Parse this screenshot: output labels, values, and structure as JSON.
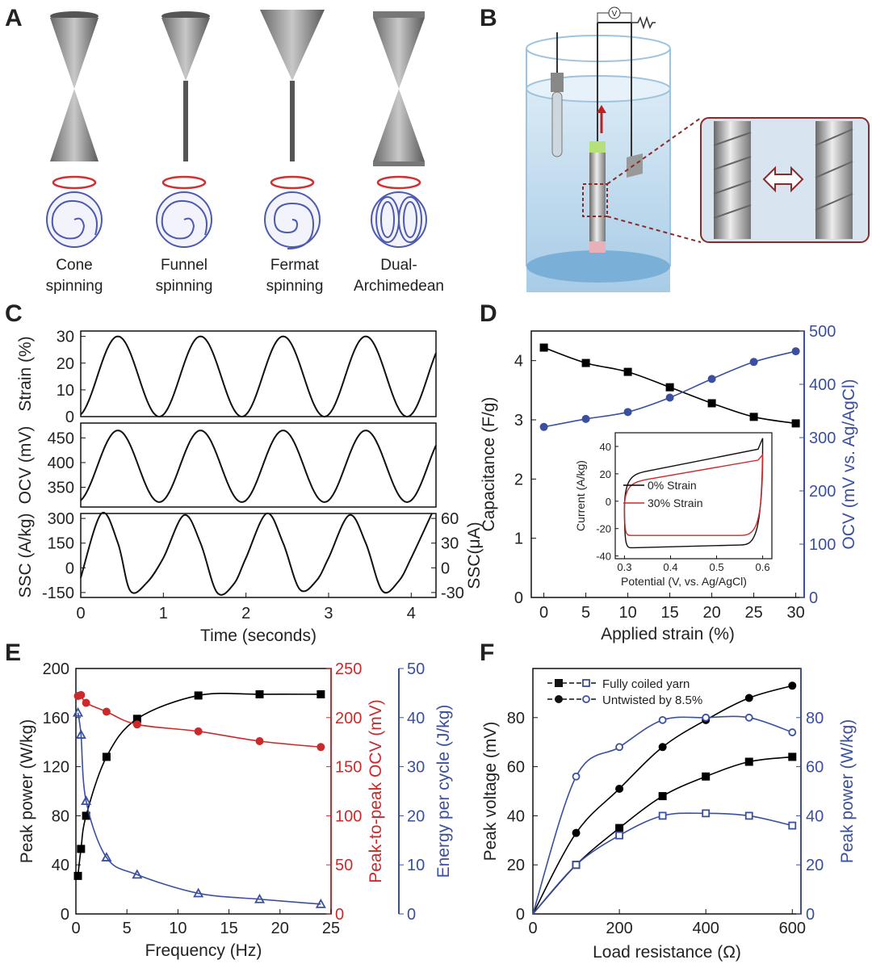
{
  "panel_letters": [
    "A",
    "B",
    "C",
    "D",
    "E",
    "F"
  ],
  "panelA": {
    "labels": [
      [
        "Cone",
        "spinning"
      ],
      [
        "Funnel",
        "spinning"
      ],
      [
        "Fermat",
        "spinning"
      ],
      [
        "Dual-",
        "Archimedean"
      ]
    ]
  },
  "panelB": {
    "voltmeter": "V"
  },
  "chart_data": [
    {
      "id": "C",
      "type": "line",
      "xlabel": "Time (seconds)",
      "xlim": [
        0,
        4.3
      ],
      "xticks": [
        0,
        1,
        2,
        3,
        4
      ],
      "peak_times": [
        0.45,
        1.5,
        2.45,
        3.45,
        4.45
      ],
      "subplots": [
        {
          "ylabel": "Strain (%)",
          "ylim": [
            0,
            32
          ],
          "yticks": [
            0,
            10,
            20,
            30
          ],
          "min": 0,
          "max": 30
        },
        {
          "ylabel": "OCV (mV)",
          "ylim": [
            310,
            480
          ],
          "yticks": [
            350,
            400,
            450
          ],
          "min": 320,
          "max": 465
        },
        {
          "ylabel": "SSC (A/kg)",
          "ylim": [
            -180,
            330
          ],
          "yticks": [
            -150,
            0,
            150,
            300
          ],
          "y2label": "SSC(μA)",
          "y2ticks": [
            -30,
            0,
            30,
            60
          ],
          "series": {
            "x": [
              0,
              0.25,
              0.45,
              0.6,
              0.8,
              1.0,
              1.25,
              1.45,
              1.65,
              1.85,
              2.0,
              2.25,
              2.45,
              2.65,
              2.85,
              3.0,
              3.25,
              3.45,
              3.65,
              3.85,
              4.0,
              4.25
            ],
            "y": [
              -60,
              330,
              150,
              -140,
              -90,
              60,
              320,
              150,
              -150,
              -100,
              60,
              330,
              150,
              -130,
              -80,
              60,
              320,
              150,
              -140,
              -80,
              60,
              330
            ]
          }
        }
      ]
    },
    {
      "id": "D",
      "type": "line",
      "xlabel": "Applied strain (%)",
      "ylabel": "Capacitance (F/g)",
      "y2label": "OCV (mV vs. Ag/AgCl)",
      "xlim": [
        -1.5,
        31
      ],
      "ylim": [
        0,
        4.5
      ],
      "y2lim": [
        0,
        500
      ],
      "xticks": [
        0,
        5,
        10,
        15,
        20,
        25,
        30
      ],
      "yticks": [
        0,
        1,
        2,
        3,
        4
      ],
      "y2ticks": [
        0,
        100,
        200,
        300,
        400,
        500
      ],
      "series": [
        {
          "name": "Capacitance",
          "color": "#000000",
          "marker": "square",
          "axis": "left",
          "x": [
            0,
            5,
            10,
            15,
            20,
            25,
            30
          ],
          "y": [
            4.22,
            3.96,
            3.81,
            3.55,
            3.28,
            3.05,
            2.94
          ]
        },
        {
          "name": "OCV",
          "color": "#3a4fa0",
          "marker": "circle",
          "axis": "right",
          "x": [
            0,
            5,
            10,
            15,
            20,
            25,
            30
          ],
          "y": [
            320,
            335,
            348,
            375,
            410,
            442,
            462
          ]
        }
      ],
      "inset": {
        "xlabel": "Potential (V, vs. Ag/AgCl)",
        "ylabel": "Current (A/kg)",
        "xlim": [
          0.28,
          0.62
        ],
        "ylim": [
          -42,
          50
        ],
        "xticks": [
          0.3,
          0.4,
          0.5,
          0.6
        ],
        "yticks": [
          -40,
          -20,
          0,
          20,
          40
        ],
        "legend": [
          {
            "label": "0% Strain",
            "color": "#000000"
          },
          {
            "label": "30% Strain",
            "color": "#cc2a2a"
          }
        ]
      }
    },
    {
      "id": "E",
      "type": "scatter",
      "xlabel": "Frequency (Hz)",
      "ylabel": "Peak power (W/kg)",
      "y2label": "Peak-to-peak OCV (mV)",
      "y3label": "Energy per cycle (J/kg)",
      "xlim": [
        0,
        25
      ],
      "ylim": [
        0,
        200
      ],
      "y2lim": [
        0,
        250
      ],
      "y3lim": [
        0,
        50
      ],
      "xticks": [
        0,
        5,
        10,
        15,
        20,
        25
      ],
      "yticks": [
        0,
        40,
        80,
        120,
        160,
        200
      ],
      "y2ticks": [
        0,
        50,
        100,
        150,
        200,
        250
      ],
      "y3ticks": [
        0,
        10,
        20,
        30,
        40,
        50
      ],
      "series": [
        {
          "name": "Peak power",
          "color": "#000000",
          "marker": "square",
          "axis": "left",
          "x": [
            0.2,
            0.5,
            1,
            3,
            6,
            12,
            18,
            24
          ],
          "y": [
            31,
            53,
            80,
            128,
            159,
            178,
            179,
            179
          ]
        },
        {
          "name": "Peak-to-peak OCV",
          "color": "#cc2a2a",
          "marker": "circle",
          "axis": "right",
          "x": [
            0.2,
            0.5,
            1,
            3,
            6,
            12,
            18,
            24
          ],
          "y": [
            222,
            223,
            215,
            206,
            193,
            186,
            176,
            170
          ]
        },
        {
          "name": "Energy per cycle",
          "color": "#3a4fa0",
          "marker": "triangle",
          "axis": "far-right",
          "x": [
            0.2,
            0.5,
            1,
            3,
            6,
            12,
            18,
            24
          ],
          "y": [
            41,
            36.5,
            23,
            11.5,
            8,
            4.2,
            3,
            2
          ]
        }
      ]
    },
    {
      "id": "F",
      "type": "scatter",
      "xlabel": "Load resistance (Ω)",
      "ylabel": "Peak voltage (mV)",
      "y2label": "Peak power (W/kg)",
      "xlim": [
        0,
        620
      ],
      "ylim": [
        0,
        100
      ],
      "y2lim": [
        0,
        100
      ],
      "xticks": [
        0,
        200,
        400,
        600
      ],
      "yticks": [
        0,
        20,
        40,
        60,
        80
      ],
      "y2ticks": [
        0,
        20,
        40,
        60,
        80
      ],
      "legend": [
        {
          "label": "Fully coiled yarn",
          "markers": [
            "filled-square",
            "open-square"
          ]
        },
        {
          "label": "Untwisted by 8.5%",
          "markers": [
            "filled-circle",
            "open-circle"
          ]
        }
      ],
      "series": [
        {
          "name": "Fully coiled yarn voltage",
          "color": "#000000",
          "marker": "filled-square",
          "axis": "left",
          "x": [
            100,
            200,
            300,
            400,
            500,
            600
          ],
          "y": [
            20,
            35,
            48,
            56,
            62,
            64
          ]
        },
        {
          "name": "Untwisted by 8.5% voltage",
          "color": "#000000",
          "marker": "filled-circle",
          "axis": "left",
          "x": [
            100,
            200,
            300,
            400,
            500,
            600
          ],
          "y": [
            33,
            51,
            68,
            79,
            88,
            93
          ]
        },
        {
          "name": "Fully coiled yarn power",
          "color": "#3a4fa0",
          "marker": "open-square",
          "axis": "right",
          "x": [
            100,
            200,
            300,
            400,
            500,
            600
          ],
          "y": [
            20,
            32,
            40,
            41,
            40,
            36
          ]
        },
        {
          "name": "Untwisted by 8.5% power",
          "color": "#3a4fa0",
          "marker": "open-circle",
          "axis": "right",
          "x": [
            100,
            200,
            300,
            400,
            500,
            600
          ],
          "y": [
            56,
            68,
            79,
            80,
            80,
            74
          ]
        }
      ]
    }
  ]
}
